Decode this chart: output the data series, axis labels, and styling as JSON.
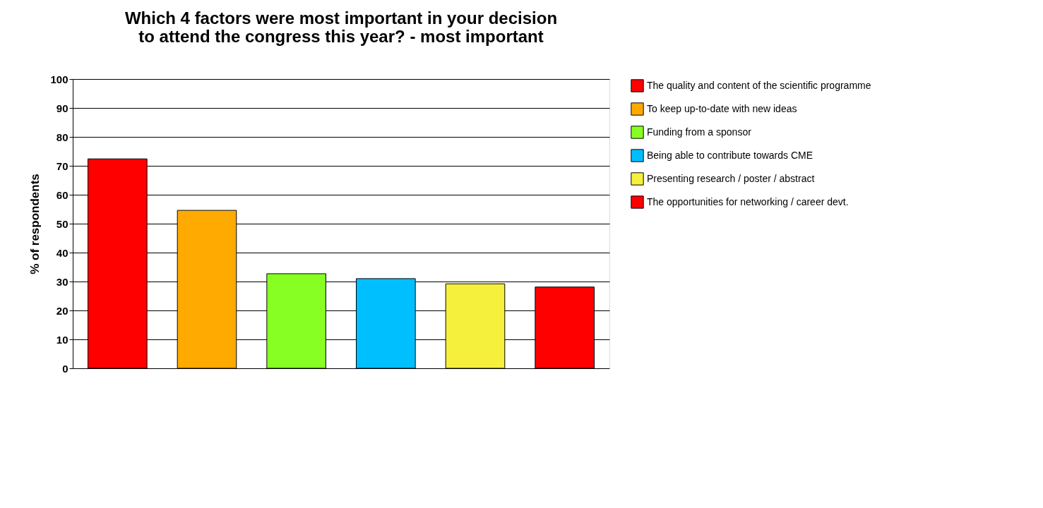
{
  "chart_data": {
    "type": "bar",
    "title": "Which 4 factors were most important in your decision to attend the congress this year? - most important",
    "ylabel": "% of respondents",
    "categories": [
      null
    ],
    "series": [
      {
        "name": "The quality and content of the scientific programme",
        "color": "#ff0000",
        "values": [
          72.4
        ]
      },
      {
        "name": "To keep up-to-date with new ideas",
        "color": "#ffaa00",
        "values": [
          54.6
        ]
      },
      {
        "name": "Funding  from a sponsor",
        "color": "#88ff22",
        "values": [
          32.7
        ]
      },
      {
        "name": "Being able to contribute towards CME",
        "color": "#00bfff",
        "values": [
          31.0
        ]
      },
      {
        "name": "Presenting research / poster / abstract",
        "color": "#f5f03c",
        "values": [
          29.2
        ]
      },
      {
        "name": "The opportunities for networking / career devt.",
        "color": "#ff0000",
        "values": [
          28.1
        ]
      }
    ],
    "ylim": [
      0,
      100
    ],
    "yticks": [
      0,
      10,
      20,
      30,
      40,
      50,
      60,
      70,
      80,
      90,
      100
    ],
    "grid": "y",
    "legend": "right",
    "tick_labels": "y"
  }
}
